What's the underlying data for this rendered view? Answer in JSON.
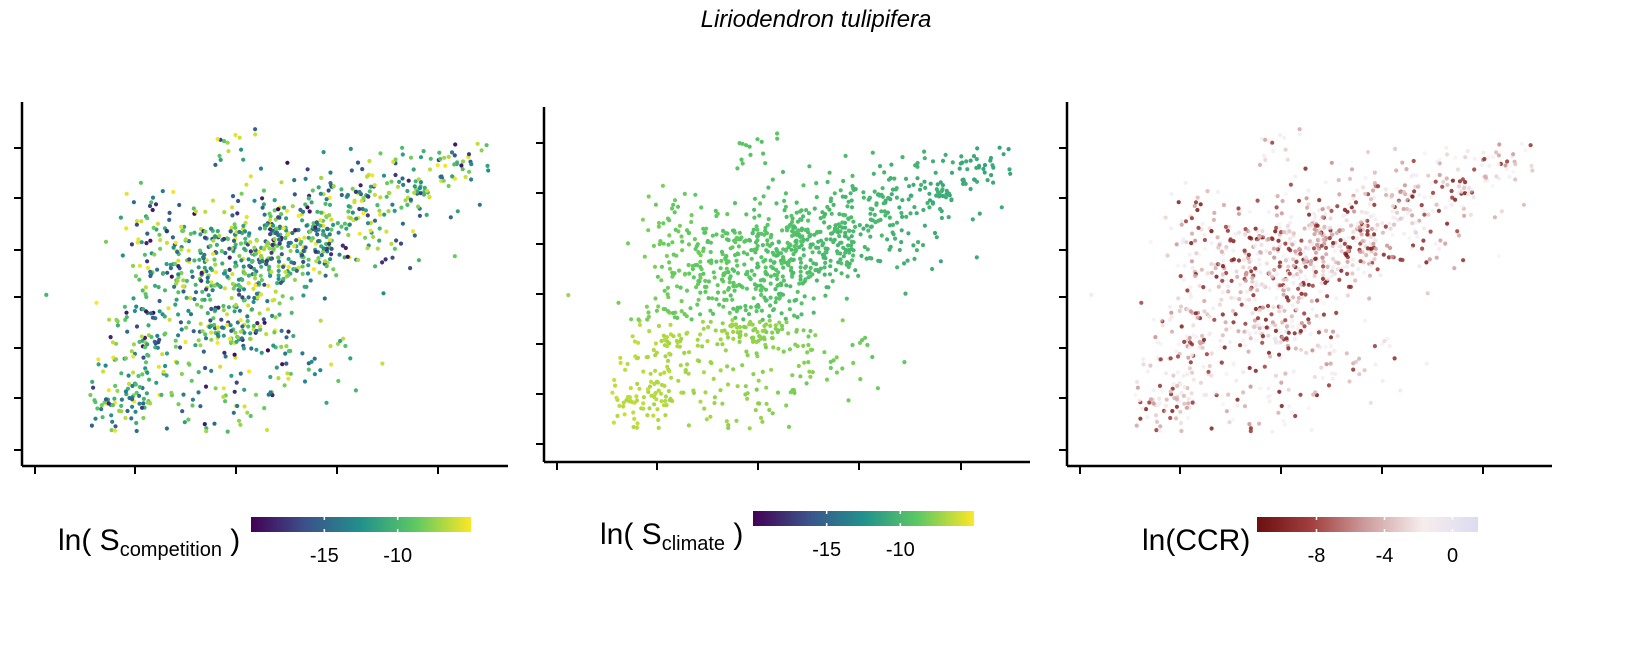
{
  "title": "Liriodendron tulipifera",
  "colors": {
    "axis": "#000000",
    "viridis": [
      "#440154",
      "#3b528b",
      "#21918c",
      "#5ec962",
      "#fde725"
    ],
    "ccr": [
      "#6b0f0f",
      "#a34040",
      "#cf9f9f",
      "#f7eded",
      "#dcdcf0"
    ]
  },
  "panels": [
    {
      "id": "competition",
      "legend": {
        "prefix": "ln( S",
        "sub": "competition",
        "suffix": " )"
      },
      "palette": "viridis",
      "colorbar": {
        "min": -20,
        "max": -5,
        "ticks": [
          -15,
          -10
        ],
        "tick_labels": [
          "-15",
          "-10"
        ]
      }
    },
    {
      "id": "climate",
      "legend": {
        "prefix": "ln( S",
        "sub": "climate",
        "suffix": " )"
      },
      "palette": "viridis",
      "colorbar": {
        "min": -20,
        "max": -5,
        "ticks": [
          -15,
          -10
        ],
        "tick_labels": [
          "-15",
          "-10"
        ]
      }
    },
    {
      "id": "ccr",
      "legend": {
        "prefix": "ln(CCR)",
        "sub": "",
        "suffix": ""
      },
      "palette": "ccr",
      "colorbar": {
        "min": -11.5,
        "max": 1.5,
        "ticks": [
          -8,
          -4,
          0
        ],
        "tick_labels": [
          "-8",
          "-4",
          "0"
        ]
      }
    }
  ],
  "chart_data": {
    "type": "scatter",
    "title": "Liriodendron tulipifera",
    "xlabel": "",
    "ylabel": "",
    "x_ticks_labeled": false,
    "y_ticks_labeled": false,
    "grid": false,
    "legend_position": "bottom",
    "note": "Three map panels of the same site locations; each point colored by a continuous value",
    "series": [
      {
        "name": "ln( S competition )",
        "value_range": [
          -20,
          -5
        ],
        "colorbar_ticks": [
          -15,
          -10
        ]
      },
      {
        "name": "ln( S climate )",
        "value_range": [
          -12,
          -7
        ],
        "colorbar_ticks": [
          -15,
          -10
        ]
      },
      {
        "name": "ln(CCR)",
        "value_range": [
          -11,
          1
        ],
        "colorbar_ticks": [
          -8,
          -4,
          0
        ]
      }
    ]
  }
}
